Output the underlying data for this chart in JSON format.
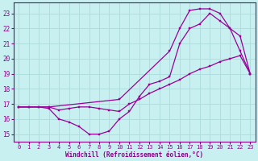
{
  "bg_color": "#c8f0f0",
  "line_color": "#990099",
  "grid_color": "#b0dede",
  "xlabel": "Windchill (Refroidissement éolien,°C)",
  "xlabel_color": "#880088",
  "tick_color": "#880088",
  "xlim": [
    -0.5,
    23.5
  ],
  "ylim": [
    14.5,
    23.7
  ],
  "yticks": [
    15,
    16,
    17,
    18,
    19,
    20,
    21,
    22,
    23
  ],
  "xticks": [
    0,
    1,
    2,
    3,
    4,
    5,
    6,
    7,
    8,
    9,
    10,
    11,
    12,
    13,
    14,
    15,
    16,
    17,
    18,
    19,
    20,
    21,
    22,
    23
  ],
  "curve1_x": [
    0,
    1,
    2,
    3,
    4,
    5,
    6,
    7,
    8,
    9,
    10,
    11,
    12,
    13,
    14,
    15,
    16,
    17,
    18,
    19,
    20,
    21,
    22,
    23
  ],
  "curve1_y": [
    16.8,
    16.8,
    16.8,
    16.7,
    16.0,
    15.8,
    15.5,
    15.0,
    15.0,
    15.2,
    16.0,
    16.5,
    17.5,
    18.3,
    18.5,
    18.8,
    21.0,
    22.0,
    22.3,
    23.0,
    22.5,
    22.0,
    21.5,
    19.0
  ],
  "curve2_x": [
    0,
    1,
    2,
    3,
    4,
    5,
    6,
    7,
    8,
    9,
    10,
    11,
    12,
    13,
    14,
    15,
    16,
    17,
    18,
    19,
    20,
    21,
    22,
    23
  ],
  "curve2_y": [
    16.8,
    16.8,
    16.8,
    16.8,
    16.6,
    16.7,
    16.8,
    16.8,
    16.7,
    16.6,
    16.5,
    17.0,
    17.3,
    17.7,
    18.0,
    18.3,
    18.6,
    19.0,
    19.3,
    19.5,
    19.8,
    20.0,
    20.2,
    19.0
  ],
  "curve3_x": [
    0,
    3,
    10,
    15,
    16,
    17,
    18,
    19,
    20,
    21,
    22,
    23
  ],
  "curve3_y": [
    16.8,
    16.8,
    17.3,
    20.5,
    22.0,
    23.2,
    23.3,
    23.3,
    23.0,
    22.0,
    20.5,
    19.0
  ]
}
